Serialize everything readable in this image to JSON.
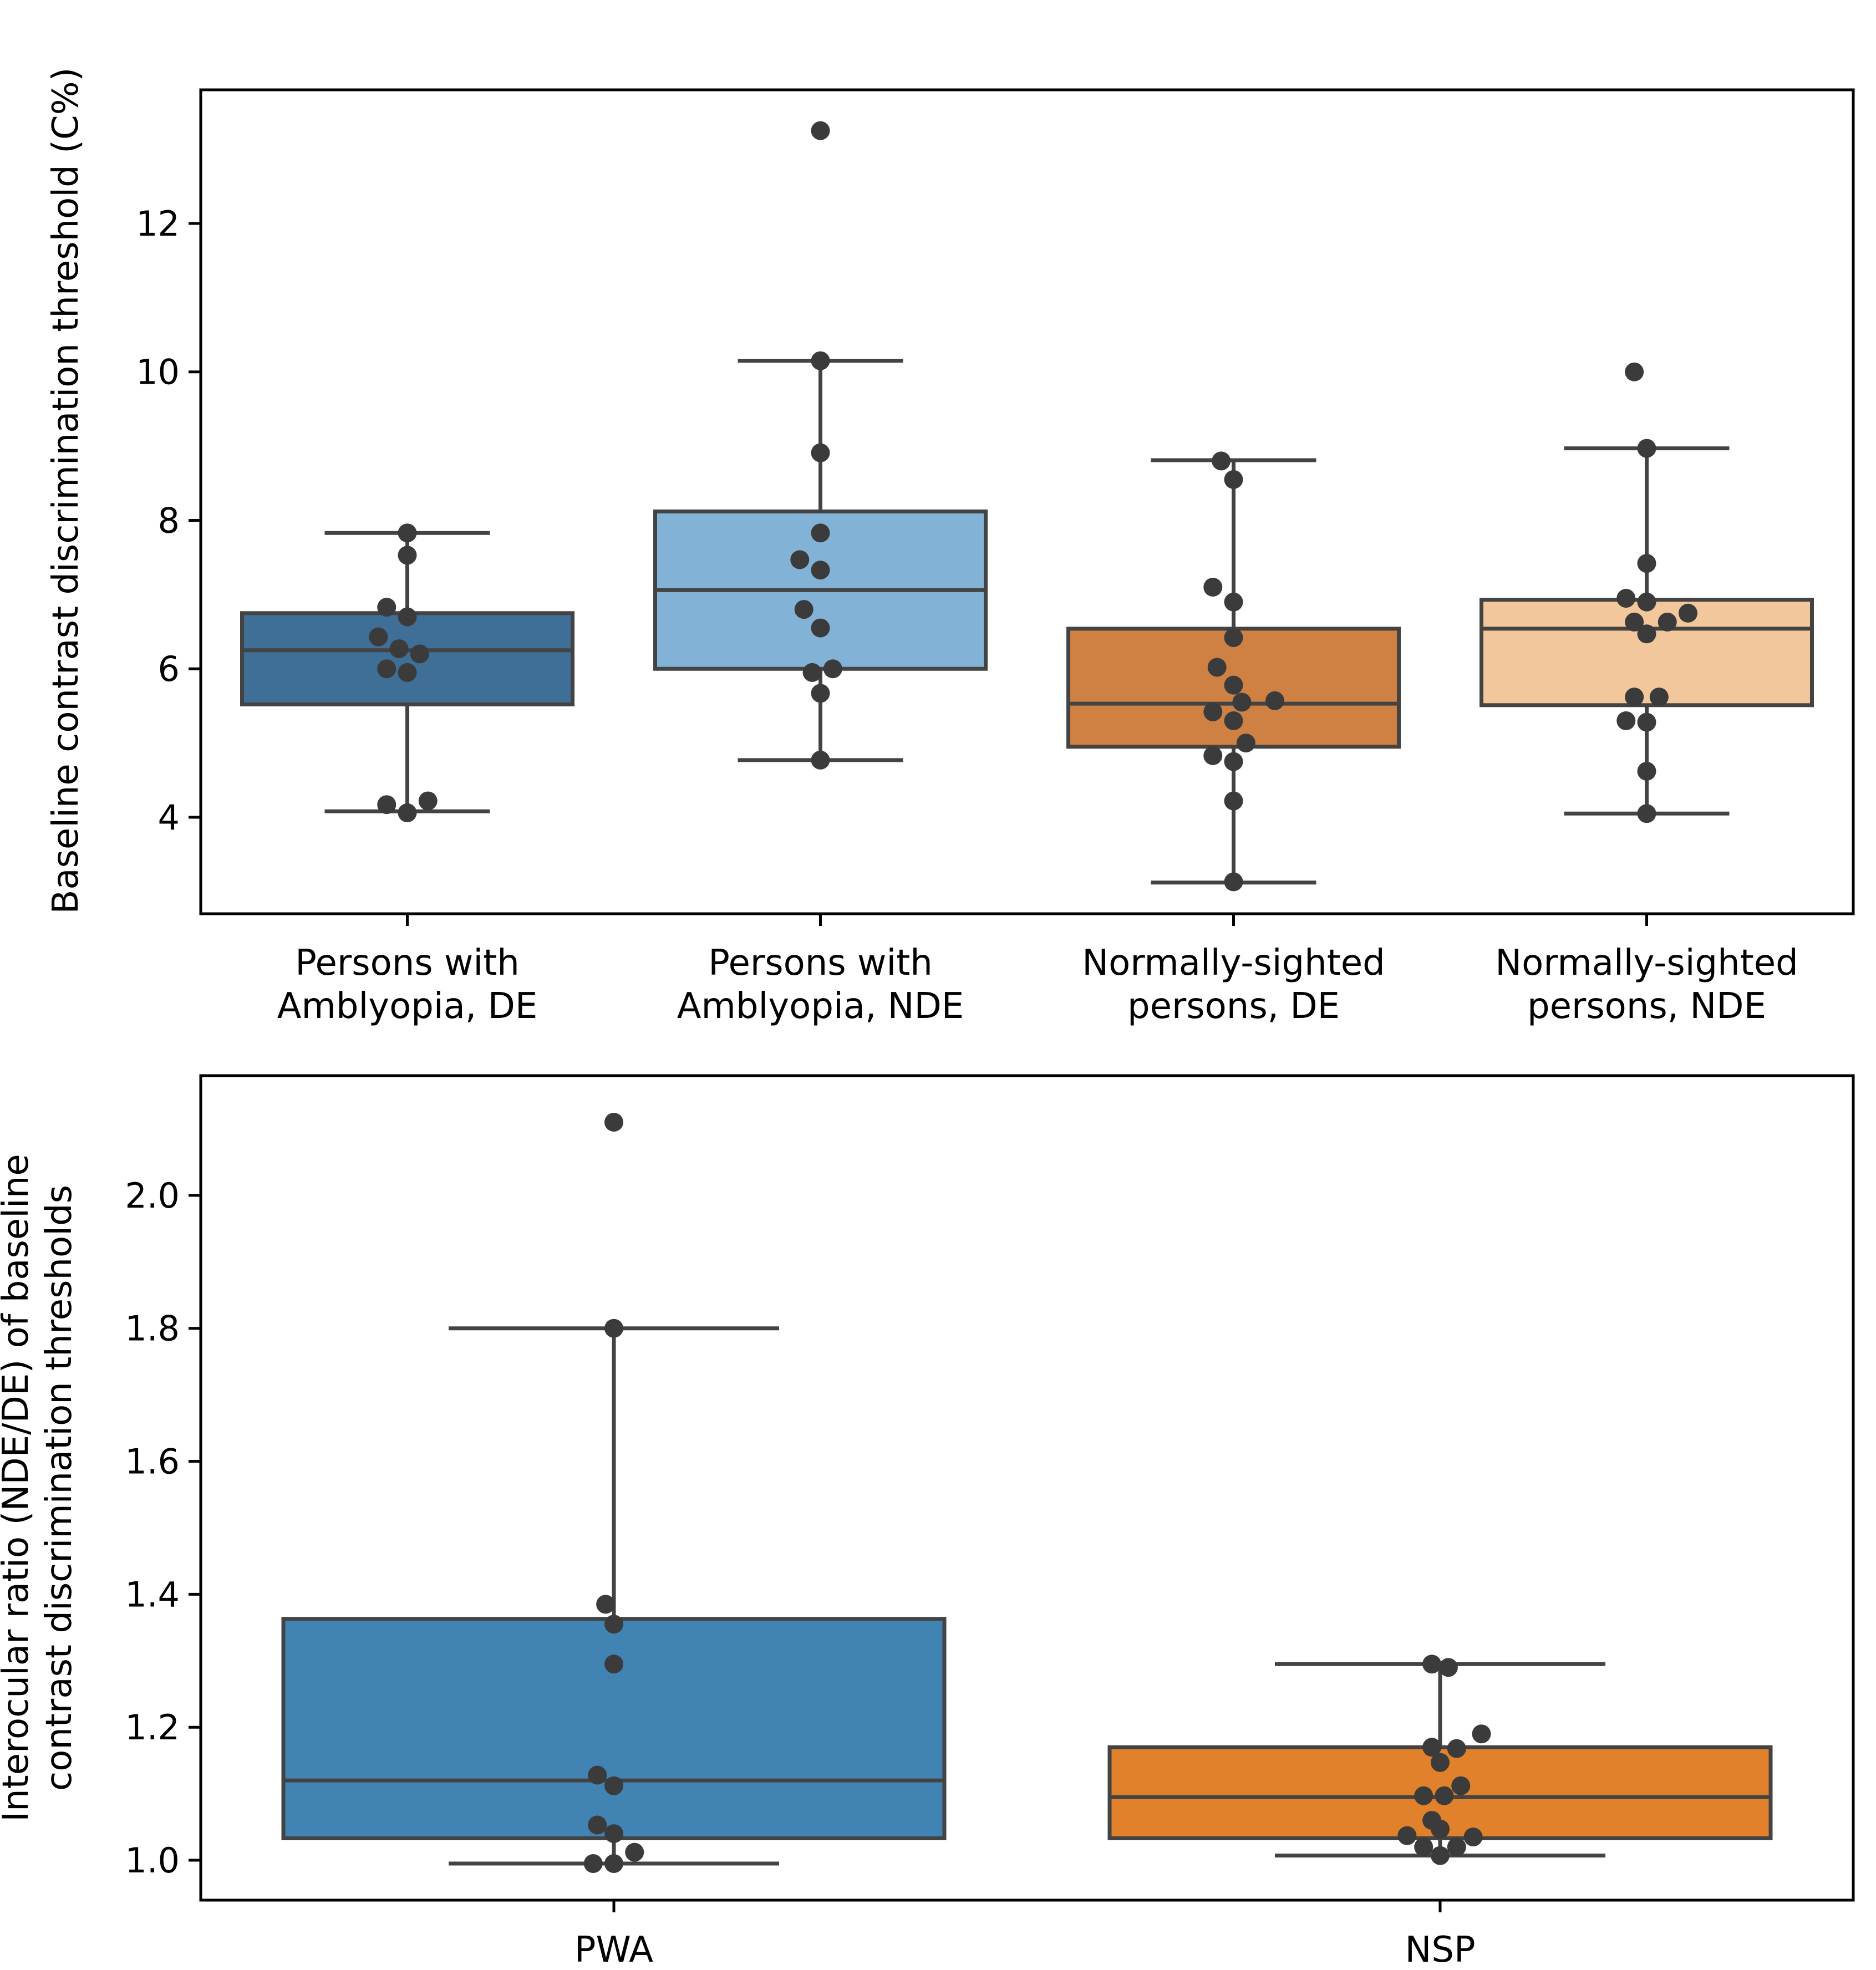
{
  "chart_data": [
    {
      "type": "box",
      "title": "",
      "xlabel": "",
      "ylabel": "Baseline contrast discrimination threshold (C%)",
      "ylim": [
        2.7,
        13.8
      ],
      "yticks": [
        4,
        6,
        8,
        10,
        12
      ],
      "ytick_labels": [
        "4",
        "6",
        "8",
        "10",
        "12"
      ],
      "grid": false,
      "categories": [
        {
          "line1": "Persons with",
          "line2": "Amblyopia, DE",
          "color": "#3f6f96"
        },
        {
          "line1": "Persons with",
          "line2": "Amblyopia, NDE",
          "color": "#82b3d6"
        },
        {
          "line1": "Normally-sighted",
          "line2": "persons, DE",
          "color": "#cf8144"
        },
        {
          "line1": "Normally-sighted",
          "line2": "persons, NDE",
          "color": "#f3c79c"
        }
      ],
      "boxes": [
        {
          "whisker_low": 4.08,
          "q1": 5.52,
          "median": 6.25,
          "q3": 6.75,
          "whisker_high": 7.83
        },
        {
          "whisker_low": 4.77,
          "q1": 6.0,
          "median": 7.06,
          "q3": 8.12,
          "whisker_high": 10.15
        },
        {
          "whisker_low": 3.12,
          "q1": 4.95,
          "median": 5.53,
          "q3": 6.54,
          "whisker_high": 8.81
        },
        {
          "whisker_low": 4.05,
          "q1": 5.51,
          "median": 6.54,
          "q3": 6.93,
          "whisker_high": 8.97
        }
      ],
      "points": [
        [
          [
            7.83,
            0
          ],
          [
            7.53,
            0
          ],
          [
            6.83,
            -0.05
          ],
          [
            6.7,
            0
          ],
          [
            6.43,
            -0.07
          ],
          [
            6.27,
            -0.02
          ],
          [
            6.2,
            0.03
          ],
          [
            6.0,
            -0.05
          ],
          [
            5.95,
            0
          ],
          [
            4.22,
            0.05
          ],
          [
            4.17,
            -0.05
          ],
          [
            4.06,
            0
          ]
        ],
        [
          [
            13.25,
            0
          ],
          [
            10.15,
            0
          ],
          [
            8.91,
            0
          ],
          [
            7.83,
            0
          ],
          [
            7.47,
            -0.05
          ],
          [
            7.33,
            0
          ],
          [
            6.8,
            -0.04
          ],
          [
            6.55,
            0
          ],
          [
            6.0,
            0.03
          ],
          [
            5.95,
            -0.02
          ],
          [
            5.67,
            0
          ],
          [
            4.77,
            0
          ]
        ],
        [
          [
            8.8,
            -0.03
          ],
          [
            8.55,
            0
          ],
          [
            7.1,
            -0.05
          ],
          [
            6.9,
            0
          ],
          [
            6.42,
            0
          ],
          [
            6.02,
            -0.04
          ],
          [
            5.78,
            0
          ],
          [
            5.55,
            0.02
          ],
          [
            5.57,
            0.1
          ],
          [
            5.42,
            -0.05
          ],
          [
            5.3,
            0
          ],
          [
            5.0,
            0.03
          ],
          [
            4.83,
            -0.05
          ],
          [
            4.75,
            0
          ],
          [
            4.22,
            0
          ],
          [
            3.13,
            0
          ]
        ],
        [
          [
            10.0,
            -0.03
          ],
          [
            8.97,
            0
          ],
          [
            7.42,
            0
          ],
          [
            6.95,
            -0.05
          ],
          [
            6.9,
            0
          ],
          [
            6.75,
            0.1
          ],
          [
            6.63,
            -0.03
          ],
          [
            6.63,
            0.05
          ],
          [
            6.47,
            0
          ],
          [
            5.62,
            -0.03
          ],
          [
            5.62,
            0.03
          ],
          [
            5.3,
            -0.05
          ],
          [
            5.28,
            0
          ],
          [
            4.62,
            0
          ],
          [
            4.05,
            0
          ]
        ]
      ]
    },
    {
      "type": "box",
      "title": "",
      "xlabel": "",
      "ylabel": "Interocular ratio (NDE/DE) of baseline contrast discrimination thresholds",
      "ylabel_line1": "Interocular ratio (NDE/DE) of baseline",
      "ylabel_line2": "contrast discrimination thresholds",
      "ylim": [
        0.94,
        2.18
      ],
      "yticks": [
        1.0,
        1.2,
        1.4,
        1.6,
        1.8,
        2.0
      ],
      "ytick_labels": [
        "1.0",
        "1.2",
        "1.4",
        "1.6",
        "1.8",
        "2.0"
      ],
      "grid": false,
      "categories": [
        {
          "line1": "PWA",
          "line2": "",
          "color": "#4184b4"
        },
        {
          "line1": "NSP",
          "line2": "",
          "color": "#e1812c"
        }
      ],
      "boxes": [
        {
          "whisker_low": 0.995,
          "q1": 1.033,
          "median": 1.12,
          "q3": 1.363,
          "whisker_high": 1.8
        },
        {
          "whisker_low": 1.007,
          "q1": 1.033,
          "median": 1.095,
          "q3": 1.17,
          "whisker_high": 1.295
        }
      ],
      "points": [
        [
          [
            2.11,
            0
          ],
          [
            1.8,
            0
          ],
          [
            1.385,
            -0.01
          ],
          [
            1.355,
            0
          ],
          [
            1.295,
            0
          ],
          [
            1.128,
            -0.02
          ],
          [
            1.112,
            0
          ],
          [
            1.053,
            -0.02
          ],
          [
            1.04,
            0
          ],
          [
            1.012,
            0.025
          ],
          [
            0.995,
            -0.025
          ],
          [
            0.995,
            0
          ]
        ],
        [
          [
            1.295,
            -0.01
          ],
          [
            1.29,
            0.01
          ],
          [
            1.19,
            0.05
          ],
          [
            1.17,
            -0.01
          ],
          [
            1.168,
            0.02
          ],
          [
            1.147,
            0
          ],
          [
            1.112,
            0.025
          ],
          [
            1.097,
            -0.02
          ],
          [
            1.097,
            0.005
          ],
          [
            1.06,
            -0.01
          ],
          [
            1.047,
            0
          ],
          [
            1.037,
            -0.04
          ],
          [
            1.035,
            0.04
          ],
          [
            1.02,
            -0.02
          ],
          [
            1.02,
            0.02
          ],
          [
            1.007,
            0
          ]
        ]
      ]
    }
  ]
}
